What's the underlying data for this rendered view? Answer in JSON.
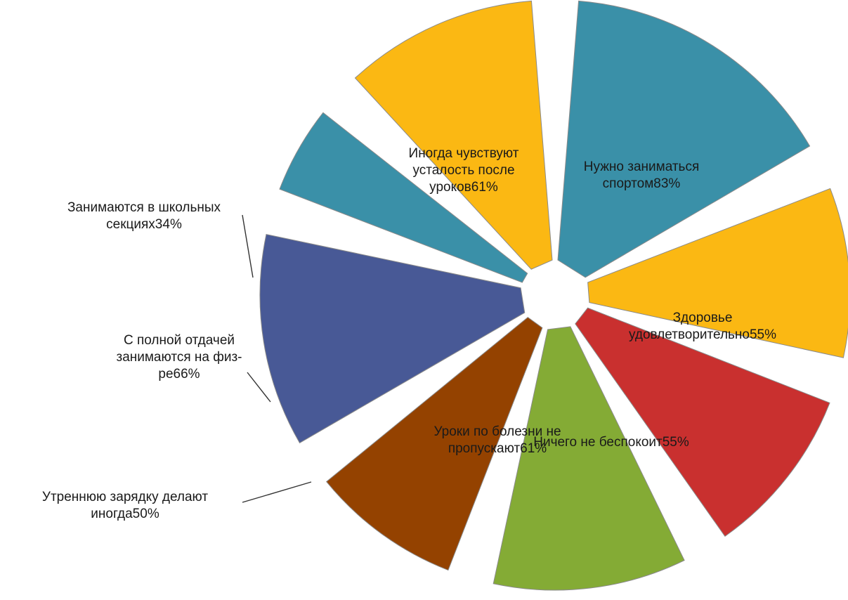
{
  "chart_data": {
    "type": "pie",
    "title": "",
    "categories": [
      "Нужно заниматься спортом83%",
      "Здоровье удовлетворительно55%",
      "Ничего не беспокоит55%",
      "Уроки по болезни не пропускают61%",
      "Утреннюю зарядку делают иногда50%",
      "С полной отдачей занимаются на физ-ре66%",
      "Занимаются в школьных секциях34%",
      "Иногда чувствуют усталость после уроков61%"
    ],
    "values": [
      83,
      55,
      55,
      61,
      50,
      66,
      34,
      61
    ],
    "label_lines": [
      [
        "Нужно заниматься",
        "спортом83%"
      ],
      [
        "Здоровье",
        "удовлетворительно55%"
      ],
      [
        "Ничего не беспокоит55%"
      ],
      [
        "Уроки по болезни не",
        "пропускают61%"
      ],
      [
        "Утреннюю зарядку делают",
        "иногда50%"
      ],
      [
        "С полной отдачей",
        "занимаются на физ-",
        "ре66%"
      ],
      [
        "Занимаются в школьных",
        "секциях34%"
      ],
      [
        "Иногда чувствуют",
        "усталость после",
        "уроков61%"
      ]
    ],
    "colors": [
      "#3a90a8",
      "#fbb813",
      "#c9302f",
      "#84ab35",
      "#944200",
      "#485996",
      "#3a90a8",
      "#fbb813"
    ],
    "exploded": true,
    "legend": "none"
  }
}
